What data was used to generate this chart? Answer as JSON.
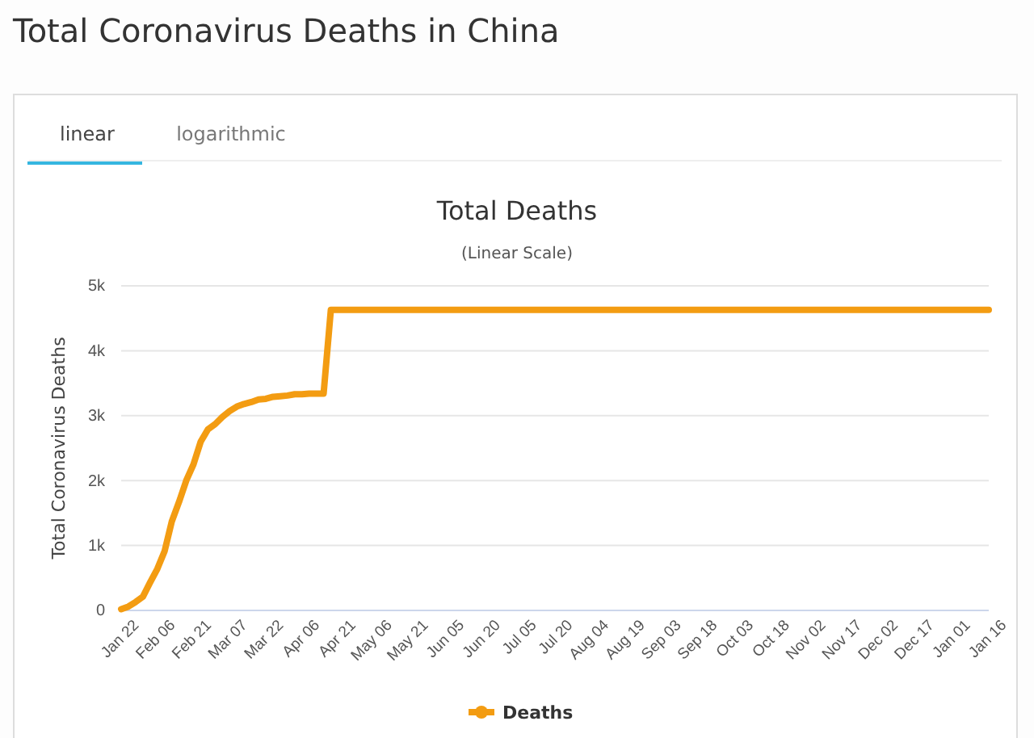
{
  "chart_data": {
    "type": "line",
    "title": "Total Deaths",
    "subtitle": "(Linear Scale)",
    "ylabel": "Total Coronavirus Deaths",
    "annotations": [
      "Total Coronavirus Deaths in China",
      "linear",
      "logarithmic"
    ],
    "categories": [
      "Jan 22",
      null,
      null,
      null,
      null,
      "Feb 06",
      null,
      null,
      null,
      null,
      "Feb 21",
      null,
      null,
      null,
      null,
      "Mar 07",
      null,
      null,
      null,
      null,
      "Mar 22",
      null,
      null,
      null,
      null,
      "Apr 06",
      null,
      null,
      null,
      null,
      "Apr 21",
      null,
      null,
      null,
      null,
      "May 06",
      null,
      null,
      null,
      null,
      "May 21",
      null,
      null,
      null,
      null,
      "Jun 05",
      null,
      null,
      null,
      null,
      "Jun 20",
      null,
      null,
      null,
      null,
      "Jul 05",
      null,
      null,
      null,
      null,
      "Jul 20",
      null,
      null,
      null,
      null,
      "Aug 04",
      null,
      null,
      null,
      null,
      "Aug 19",
      null,
      null,
      null,
      null,
      "Sep 03",
      null,
      null,
      null,
      null,
      "Sep 18",
      null,
      null,
      null,
      null,
      "Oct 03",
      null,
      null,
      null,
      null,
      "Oct 18",
      null,
      null,
      null,
      null,
      "Nov 02",
      null,
      null,
      null,
      null,
      "Nov 17",
      null,
      null,
      null,
      null,
      "Dec 02",
      null,
      null,
      null,
      null,
      "Dec 17",
      null,
      null,
      null,
      null,
      "Jan 01",
      null,
      null,
      null,
      null,
      "Jan 16"
    ],
    "series": [
      {
        "name": "Deaths",
        "color": "#f39c12",
        "values": [
          20,
          60,
          130,
          210,
          430,
          640,
          910,
          1370,
          1670,
          2000,
          2250,
          2600,
          2790,
          2870,
          2980,
          3070,
          3140,
          3180,
          3210,
          3250,
          3260,
          3290,
          3300,
          3310,
          3330,
          3330,
          3340,
          3340,
          3340,
          4630,
          4630,
          4630,
          4630,
          4630,
          4630,
          4630,
          4630,
          4630,
          4630,
          4630,
          4630,
          4630,
          4630,
          4630,
          4630,
          4630,
          4630,
          4630,
          4630,
          4630,
          4630,
          4630,
          4630,
          4630,
          4630,
          4630,
          4630,
          4630,
          4630,
          4630,
          4630,
          4630,
          4630,
          4630,
          4630,
          4630,
          4630,
          4630,
          4630,
          4630,
          4630,
          4630,
          4630,
          4630,
          4630,
          4630,
          4630,
          4630,
          4630,
          4630,
          4630,
          4630,
          4630,
          4630,
          4630,
          4630,
          4630,
          4630,
          4630,
          4630,
          4630,
          4630,
          4630,
          4630,
          4630,
          4630,
          4630,
          4630,
          4630,
          4630,
          4630,
          4630,
          4630,
          4630,
          4630,
          4630,
          4630,
          4630,
          4630,
          4630,
          4630,
          4630,
          4630,
          4630,
          4630,
          4630,
          4630,
          4630,
          4630,
          4630,
          4630
        ]
      }
    ],
    "ylim": [
      0,
      5000
    ],
    "yticks": [
      {
        "value": 0,
        "label": "0"
      },
      {
        "value": 1000,
        "label": "1k"
      },
      {
        "value": 2000,
        "label": "2k"
      },
      {
        "value": 3000,
        "label": "3k"
      },
      {
        "value": 4000,
        "label": "4k"
      },
      {
        "value": 5000,
        "label": "5k"
      }
    ],
    "grid": "y",
    "legend": "bottom",
    "line_style": "solid"
  }
}
